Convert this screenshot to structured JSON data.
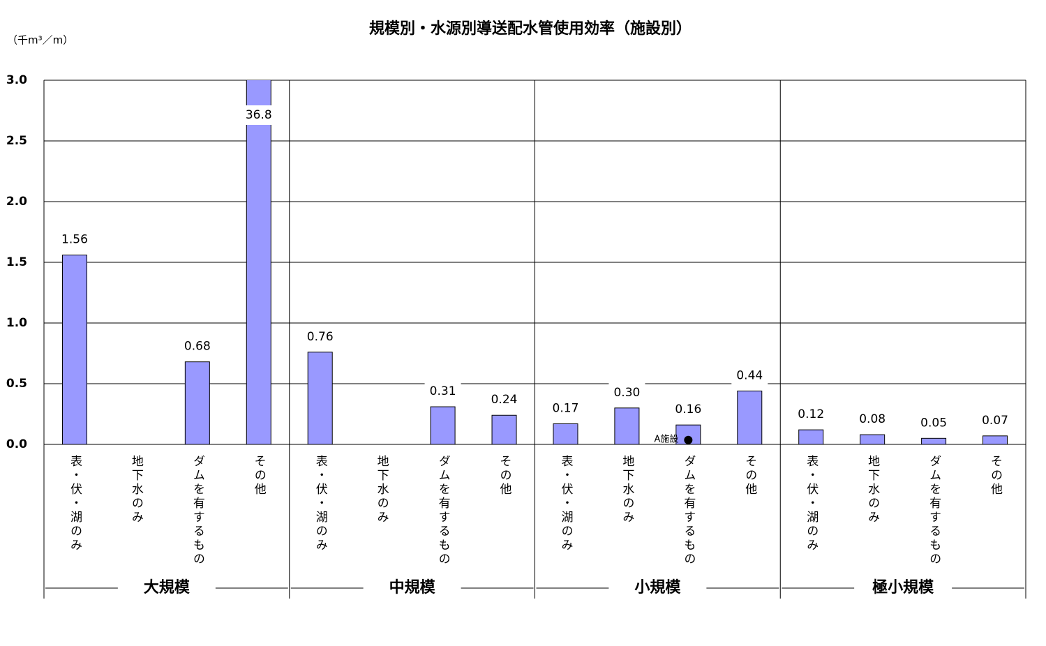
{
  "chart_data": {
    "type": "bar",
    "title": "規模別・水源別導送配水管使用効率（施設別）",
    "y_axis_label": "（千m³／m）",
    "groups": [
      "大規模",
      "中規模",
      "小規模",
      "極小規模"
    ],
    "categories": [
      "表・伏・湖のみ",
      "地下水のみ",
      "ダムを有するもの",
      "その他",
      "表・伏・湖のみ",
      "地下水のみ",
      "ダムを有するもの",
      "その他",
      "表・伏・湖のみ",
      "地下水のみ",
      "ダムを有するもの",
      "その他",
      "表・伏・湖のみ",
      "地下水のみ",
      "ダムを有するもの",
      "その他"
    ],
    "values": [
      1.56,
      null,
      0.68,
      36.8,
      0.76,
      null,
      0.31,
      0.24,
      0.17,
      0.3,
      0.16,
      0.44,
      0.12,
      0.08,
      0.05,
      0.07
    ],
    "value_labels": [
      "1.56",
      null,
      "0.68",
      "36.8",
      "0.76",
      null,
      "0.31",
      "0.24",
      "0.17",
      "0.30",
      "0.16",
      "0.44",
      "0.12",
      "0.08",
      "0.05",
      "0.07"
    ],
    "color": "#9999ff",
    "ylim": [
      0,
      3
    ],
    "yticks": [
      {
        "value": 0,
        "label": "0.0"
      },
      {
        "value": 0.5,
        "label": "0.5"
      },
      {
        "value": 1,
        "label": "1.0"
      },
      {
        "value": 1.5,
        "label": "1.5"
      },
      {
        "value": 2,
        "label": "2.0"
      },
      {
        "value": 2.5,
        "label": "2.5"
      },
      {
        "value": 3,
        "label": "3.0"
      }
    ],
    "grid": true,
    "marker": {
      "text": "A施設",
      "category": 10,
      "value": 0.03
    }
  }
}
